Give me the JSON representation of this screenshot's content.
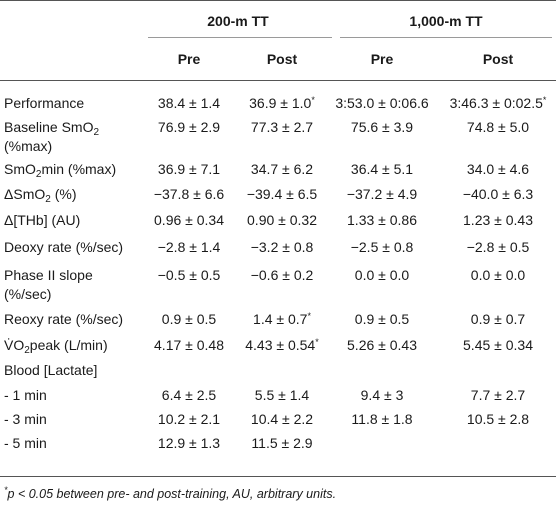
{
  "table": {
    "groups": [
      "200-m TT",
      "1,000-m TT"
    ],
    "subheaders": [
      "Pre",
      "Post",
      "Pre",
      "Post"
    ],
    "rows": [
      {
        "label": "Performance",
        "values": [
          "38.4 ± 1.4",
          "36.9 ± 1.0*",
          "3:53.0 ± 0:06.6",
          "3:46.3 ± 0:02.5*"
        ]
      },
      {
        "label": "Baseline SmO2",
        "label2": "(%max)",
        "values": [
          "76.9 ± 2.9",
          "77.3 ± 2.7",
          "75.6 ± 3.9",
          "74.8 ± 5.0"
        ]
      },
      {
        "label": "SmO2min (%max)",
        "values": [
          "36.9 ± 7.1",
          "34.7 ± 6.2",
          "36.4 ± 5.1",
          "34.0 ± 4.6"
        ]
      },
      {
        "label": "ΔSmO2 (%)",
        "values": [
          "−37.8 ± 6.6",
          "−39.4 ± 6.5",
          "−37.2 ± 4.9",
          "−40.0 ± 6.3"
        ]
      },
      {
        "label": "Δ[THb] (AU)",
        "values": [
          "0.96 ± 0.34",
          "0.90 ± 0.32",
          "1.33 ± 0.86",
          "1.23 ± 0.43"
        ]
      },
      {
        "label": "Deoxy rate (%/sec)",
        "values": [
          "−2.8 ± 1.4",
          "−3.2 ± 0.8",
          "−2.5 ± 0.8",
          "−2.8 ± 0.5"
        ]
      },
      {
        "label": "Phase II slope",
        "label2": "(%/sec)",
        "values": [
          "−0.5 ± 0.5",
          "−0.6 ± 0.2",
          "0.0 ± 0.0",
          "0.0 ± 0.0"
        ]
      },
      {
        "label": "Reoxy rate (%/sec)",
        "values": [
          "0.9 ± 0.5",
          "1.4 ± 0.7*",
          "0.9 ± 0.5",
          "0.9 ± 0.7"
        ]
      },
      {
        "label": "V̇O2peak (L/min)",
        "values": [
          "4.17 ± 0.48",
          "4.43 ± 0.54*",
          "5.26 ± 0.43",
          "5.45 ± 0.34"
        ]
      },
      {
        "label": "Blood [Lactate]",
        "values": [
          "",
          "",
          "",
          ""
        ]
      },
      {
        "label": "- 1 min",
        "values": [
          "6.4 ± 2.5",
          "5.5 ± 1.4",
          "9.4 ± 3",
          "7.7 ± 2.7"
        ]
      },
      {
        "label": "- 3 min",
        "values": [
          "10.2 ± 2.1",
          "10.4 ± 2.2",
          "11.8 ± 1.8",
          "10.5 ± 2.8"
        ]
      },
      {
        "label": "- 5 min",
        "values": [
          "12.9 ± 1.3",
          "11.5 ± 2.9",
          "",
          ""
        ]
      }
    ],
    "footnote": "*p < 0.05 between pre- and post-training, AU, arbitrary units."
  }
}
